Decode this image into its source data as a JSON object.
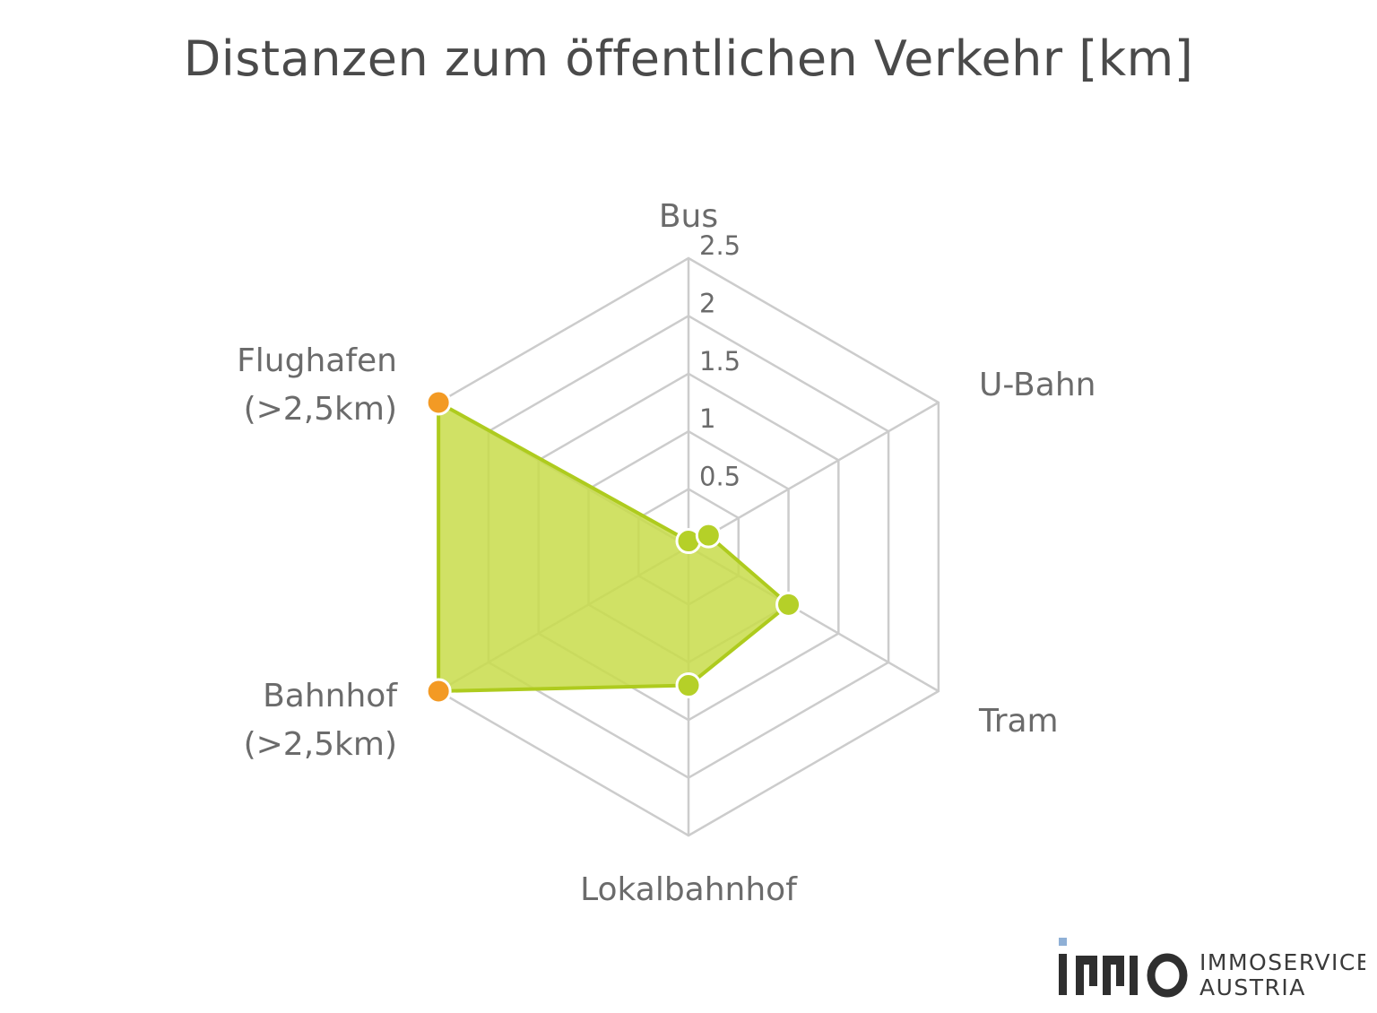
{
  "chart_data": {
    "type": "radar",
    "title": "Distanzen zum öffentlichen Verkehr [km]",
    "categories": [
      "Bus",
      "U-Bahn",
      "Tram",
      "Lokalbahnhof",
      "Bahnhof\n(>2,5km)",
      "Flughafen\n(>2,5km)"
    ],
    "values": [
      0.05,
      0.2,
      1.0,
      1.2,
      2.5,
      2.5
    ],
    "capped": [
      false,
      false,
      false,
      false,
      true,
      true
    ],
    "r_range": [
      0,
      2.5
    ],
    "r_ticks": [
      "0",
      "0.5",
      "1",
      "1.5",
      "2",
      "2.5"
    ],
    "grid": true,
    "legend": "none"
  },
  "colors": {
    "fill": "#c8dc4a",
    "line": "#aecb1e",
    "marker": "#b5d028",
    "capped_marker": "#f39a24",
    "grid": "#cccccc",
    "text": "#6b6b6b",
    "title": "#4a4a4a",
    "logo_accent": "#8fb0d6"
  },
  "logo": {
    "line1": "IMMOSERVICE",
    "line2": "AUSTRIA"
  }
}
